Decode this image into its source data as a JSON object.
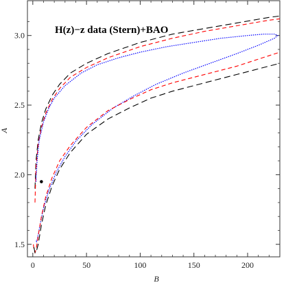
{
  "chart_data": {
    "type": "line",
    "title": "H(z)−z data (Stern)+BAO",
    "xlabel": "B",
    "ylabel": "A",
    "xlim": [
      -5,
      230
    ],
    "ylim": [
      1.41,
      3.25
    ],
    "xticks": [
      0,
      50,
      100,
      150,
      200
    ],
    "yticks": [
      1.5,
      2.0,
      2.5,
      3.0
    ],
    "xtick_labels": [
      "0",
      "50",
      "100",
      "150",
      "200"
    ],
    "ytick_labels": [
      "1.5",
      "2.0",
      "2.5",
      "3.0"
    ],
    "grid": false,
    "legend": "none",
    "series": [
      {
        "style": "dashed",
        "color": "#000000",
        "x": [
          2,
          3,
          5,
          8,
          12,
          18,
          25,
          35,
          50,
          70,
          100,
          130,
          160,
          190,
          220,
          230
        ],
        "y": [
          1.9,
          2.1,
          2.25,
          2.37,
          2.47,
          2.57,
          2.65,
          2.73,
          2.8,
          2.87,
          2.95,
          3.01,
          3.05,
          3.09,
          3.13,
          3.14
        ]
      },
      {
        "style": "dashed",
        "color": "#ff0000",
        "x": [
          2,
          3,
          5,
          8,
          12,
          18,
          25,
          35,
          50,
          70,
          100,
          130,
          160,
          190,
          220,
          230
        ],
        "y": [
          1.8,
          2.05,
          2.22,
          2.34,
          2.44,
          2.54,
          2.62,
          2.7,
          2.77,
          2.84,
          2.92,
          2.98,
          3.03,
          3.07,
          3.11,
          3.12
        ]
      },
      {
        "style": "dotted",
        "color": "#0000ff",
        "x": [
          3,
          4,
          6,
          10,
          15,
          20,
          30,
          45,
          60,
          80,
          100,
          125,
          150,
          175,
          200,
          215,
          225,
          228,
          225,
          210,
          190,
          165,
          140,
          115,
          95,
          75,
          55,
          40,
          30,
          22,
          15,
          10,
          7,
          5,
          4,
          3.5,
          3
        ],
        "y": [
          1.95,
          2.1,
          2.25,
          2.38,
          2.48,
          2.55,
          2.64,
          2.73,
          2.79,
          2.84,
          2.88,
          2.92,
          2.95,
          2.98,
          3.0,
          3.01,
          3.01,
          3.0,
          2.98,
          2.93,
          2.87,
          2.8,
          2.73,
          2.65,
          2.57,
          2.48,
          2.36,
          2.24,
          2.13,
          2.02,
          1.89,
          1.76,
          1.65,
          1.57,
          1.53,
          1.52,
          1.53
        ]
      },
      {
        "style": "dashed",
        "color": "#ff0000",
        "x": [
          0.5,
          1,
          2,
          3,
          5,
          8,
          12,
          18,
          25,
          35,
          50,
          70,
          90,
          110,
          130,
          150,
          170,
          190,
          210,
          230
        ],
        "y": [
          1.5,
          1.47,
          1.44,
          1.46,
          1.56,
          1.7,
          1.84,
          1.98,
          2.1,
          2.21,
          2.34,
          2.46,
          2.54,
          2.61,
          2.66,
          2.7,
          2.74,
          2.78,
          2.83,
          2.88
        ]
      },
      {
        "style": "dashed",
        "color": "#000000",
        "x": [
          1,
          2,
          3,
          5,
          8,
          12,
          18,
          25,
          35,
          50,
          70,
          90,
          110,
          130,
          150,
          170,
          190,
          210,
          230
        ],
        "y": [
          1.48,
          1.44,
          1.44,
          1.5,
          1.64,
          1.78,
          1.92,
          2.04,
          2.16,
          2.29,
          2.4,
          2.48,
          2.55,
          2.6,
          2.64,
          2.68,
          2.72,
          2.76,
          2.8
        ]
      }
    ],
    "points": [
      {
        "x": 8,
        "y": 1.95,
        "color": "#000000"
      }
    ]
  }
}
